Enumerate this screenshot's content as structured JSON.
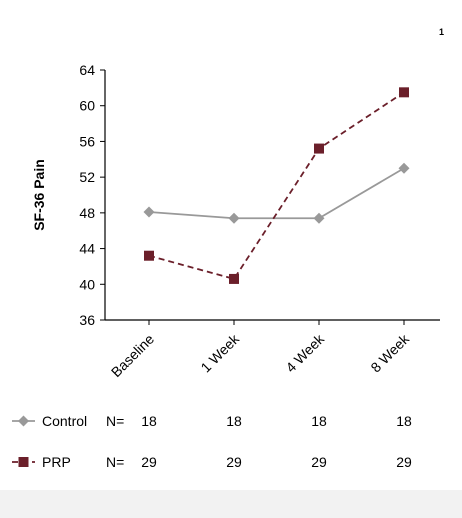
{
  "corner_mark": "1",
  "chart_data": {
    "type": "line",
    "title": "",
    "xlabel": "",
    "ylabel": "SF-36 Pain",
    "categories": [
      "Baseline",
      "1 Week",
      "4 Week",
      "8 Week"
    ],
    "ylim": [
      36,
      64
    ],
    "yticks": [
      36,
      40,
      44,
      48,
      52,
      56,
      60,
      64
    ],
    "grid": false,
    "series": [
      {
        "name": "Control",
        "values": [
          48.1,
          47.4,
          47.4,
          53.0
        ],
        "color": "#999999",
        "marker": "diamond",
        "line": "solid"
      },
      {
        "name": "PRP",
        "values": [
          43.2,
          40.6,
          55.2,
          61.5
        ],
        "color": "#6b1f2a",
        "marker": "square",
        "line": "dashed"
      }
    ],
    "n_label": "N=",
    "n_counts": [
      {
        "series": "Control",
        "values": [
          "18",
          "18",
          "18",
          "18"
        ]
      },
      {
        "series": "PRP",
        "values": [
          "29",
          "29",
          "29",
          "29"
        ]
      }
    ]
  }
}
